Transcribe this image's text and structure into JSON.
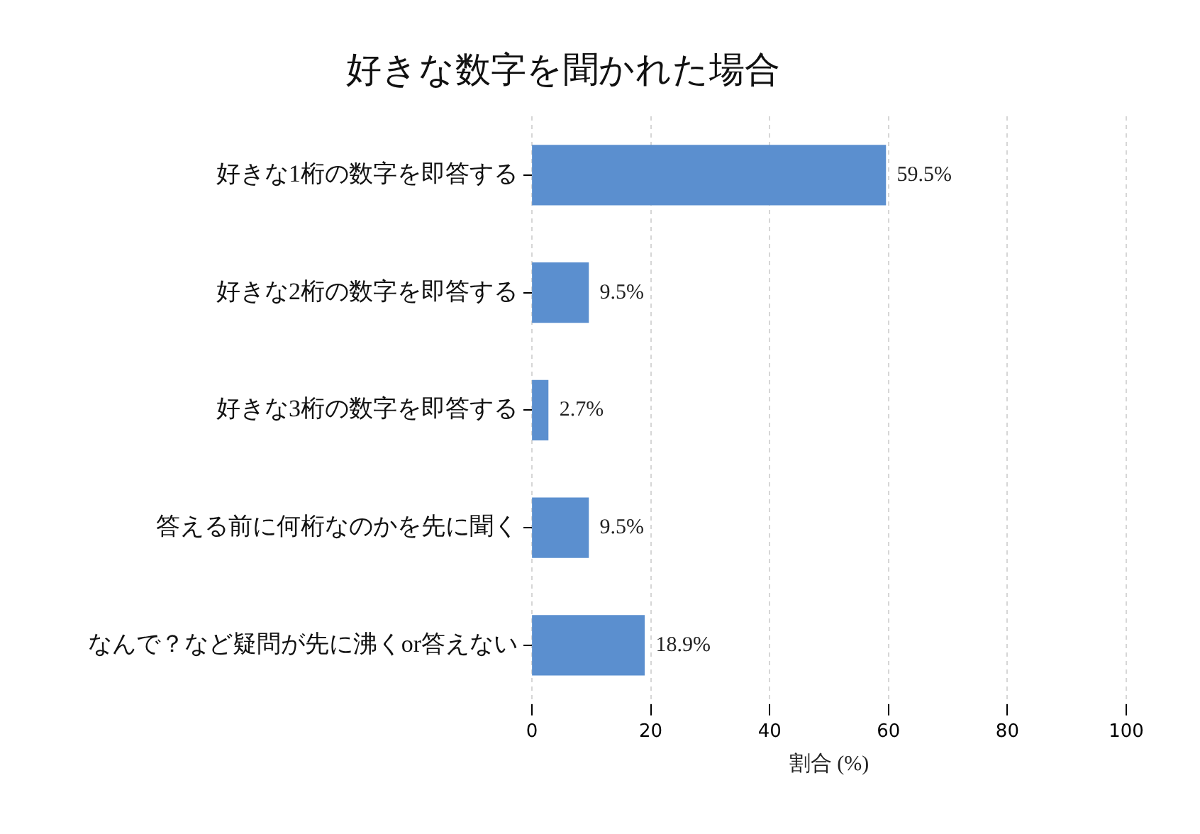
{
  "chart_data": {
    "type": "bar",
    "orientation": "horizontal",
    "title": "好きな数字を聞かれた場合",
    "xlabel": "割合 (%)",
    "categories": [
      "好きな1桁の数字を即答する",
      "好きな2桁の数字を即答する",
      "好きな3桁の数字を即答する",
      "答える前に何桁なのかを先に聞く",
      "なんで？など疑問が先に沸くor答えない"
    ],
    "values": [
      59.5,
      9.5,
      2.7,
      9.5,
      18.9
    ],
    "value_labels": [
      "59.5%",
      "9.5%",
      "2.7%",
      "9.5%",
      "18.9%"
    ],
    "color": "#5b8fcf",
    "xlim": [
      0,
      100
    ],
    "xticks": [
      0,
      20,
      40,
      60,
      80,
      100
    ],
    "grid": "x",
    "legend": false
  }
}
